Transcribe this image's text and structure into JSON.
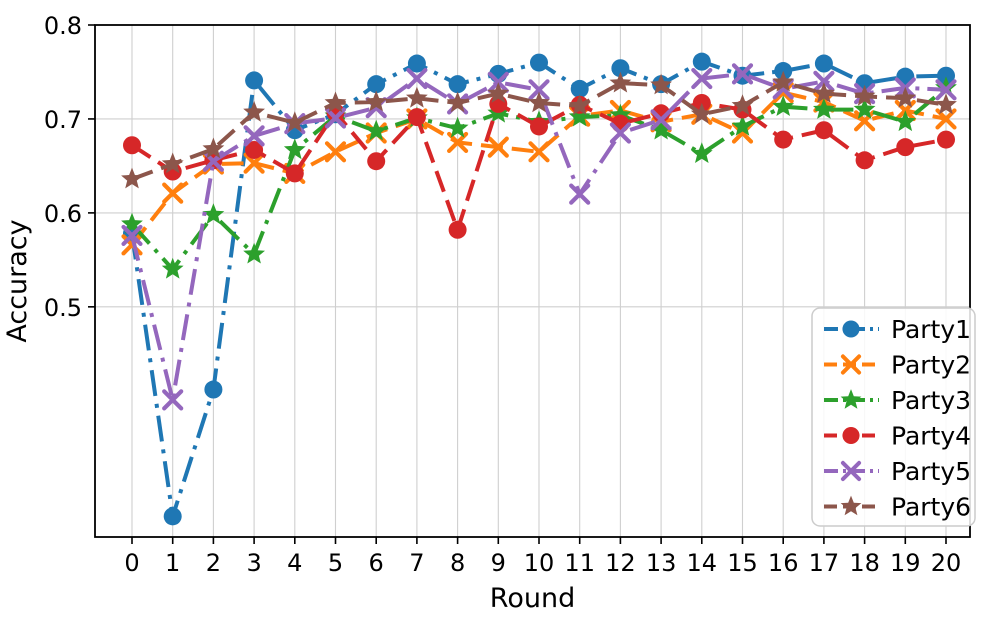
{
  "chart_data": {
    "type": "line",
    "title": "",
    "xlabel": "Round",
    "ylabel": "Accuracy",
    "x": [
      "0",
      "1",
      "2",
      "3",
      "4",
      "5",
      "6",
      "7",
      "8",
      "9",
      "10",
      "11",
      "12",
      "13",
      "14",
      "15",
      "16",
      "17",
      "18",
      "19",
      "20"
    ],
    "yticks": [
      0.5,
      0.6,
      0.7,
      0.8
    ],
    "ylim": [
      0.255,
      0.8
    ],
    "grid": true,
    "legend_position": "lower right",
    "series": [
      {
        "name": "Party1",
        "color": "#1f77b4",
        "marker": "circle",
        "linestyle": "dashdot",
        "values": [
          0.578,
          0.277,
          0.412,
          0.741,
          0.688,
          0.705,
          0.737,
          0.759,
          0.737,
          0.748,
          0.76,
          0.732,
          0.754,
          0.737,
          0.761,
          0.746,
          0.751,
          0.759,
          0.738,
          0.745,
          0.746
        ]
      },
      {
        "name": "Party2",
        "color": "#ff7f0e",
        "marker": "x",
        "linestyle": "dashed",
        "values": [
          0.566,
          0.621,
          0.652,
          0.653,
          0.642,
          0.665,
          0.685,
          0.7,
          0.675,
          0.67,
          0.665,
          0.703,
          0.709,
          0.697,
          0.705,
          0.685,
          0.728,
          0.718,
          0.698,
          0.709,
          0.7
        ]
      },
      {
        "name": "Party3",
        "color": "#2ca02c",
        "marker": "star",
        "linestyle": "dashdot",
        "values": [
          0.588,
          0.54,
          0.598,
          0.556,
          0.667,
          0.703,
          0.687,
          0.701,
          0.69,
          0.706,
          0.697,
          0.702,
          0.704,
          0.688,
          0.663,
          0.692,
          0.713,
          0.71,
          0.71,
          0.697,
          0.733
        ]
      },
      {
        "name": "Party4",
        "color": "#d62728",
        "marker": "circle",
        "linestyle": "dashed",
        "values": [
          0.672,
          0.644,
          0.656,
          0.667,
          0.642,
          0.707,
          0.655,
          0.702,
          0.582,
          0.716,
          0.692,
          0.715,
          0.695,
          0.706,
          0.717,
          0.71,
          0.678,
          0.688,
          0.656,
          0.67,
          0.678
        ]
      },
      {
        "name": "Party5",
        "color": "#9467bd",
        "marker": "x",
        "linestyle": "dashdot",
        "values": [
          0.576,
          0.401,
          0.655,
          0.682,
          0.695,
          0.701,
          0.712,
          0.743,
          0.716,
          0.739,
          0.731,
          0.62,
          0.685,
          0.699,
          0.743,
          0.748,
          0.732,
          0.74,
          0.727,
          0.733,
          0.731
        ]
      },
      {
        "name": "Party6",
        "color": "#8c564b",
        "marker": "star",
        "linestyle": "dashed",
        "values": [
          0.636,
          0.652,
          0.668,
          0.707,
          0.696,
          0.717,
          0.718,
          0.722,
          0.717,
          0.727,
          0.717,
          0.714,
          0.738,
          0.736,
          0.705,
          0.714,
          0.739,
          0.727,
          0.724,
          0.722,
          0.715
        ]
      }
    ]
  }
}
